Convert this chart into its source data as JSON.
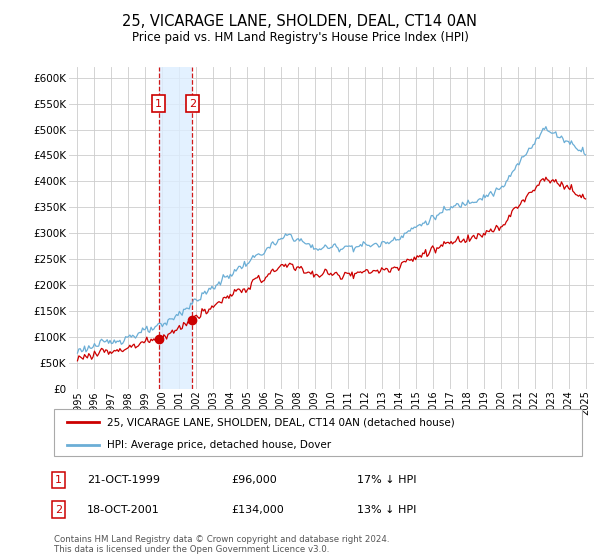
{
  "title": "25, VICARAGE LANE, SHOLDEN, DEAL, CT14 0AN",
  "subtitle": "Price paid vs. HM Land Registry's House Price Index (HPI)",
  "ylim": [
    0,
    620000
  ],
  "yticks": [
    0,
    50000,
    100000,
    150000,
    200000,
    250000,
    300000,
    350000,
    400000,
    450000,
    500000,
    550000,
    600000
  ],
  "legend_line1": "25, VICARAGE LANE, SHOLDEN, DEAL, CT14 0AN (detached house)",
  "legend_line2": "HPI: Average price, detached house, Dover",
  "transaction1_date": "21-OCT-1999",
  "transaction1_price": "£96,000",
  "transaction1_hpi": "17% ↓ HPI",
  "transaction2_date": "18-OCT-2001",
  "transaction2_price": "£134,000",
  "transaction2_hpi": "13% ↓ HPI",
  "footer": "Contains HM Land Registry data © Crown copyright and database right 2024.\nThis data is licensed under the Open Government Licence v3.0.",
  "hpi_color": "#6baed6",
  "price_color": "#cc0000",
  "shading_color": "#ddeeff",
  "background_color": "#ffffff",
  "grid_color": "#cccccc",
  "t1_year": 1999.79,
  "t2_year": 2001.79,
  "t1_price": 96000,
  "t2_price": 134000,
  "xlim_left": 1994.5,
  "xlim_right": 2025.5,
  "x_ticks_start": 1995,
  "x_ticks_end": 2025
}
